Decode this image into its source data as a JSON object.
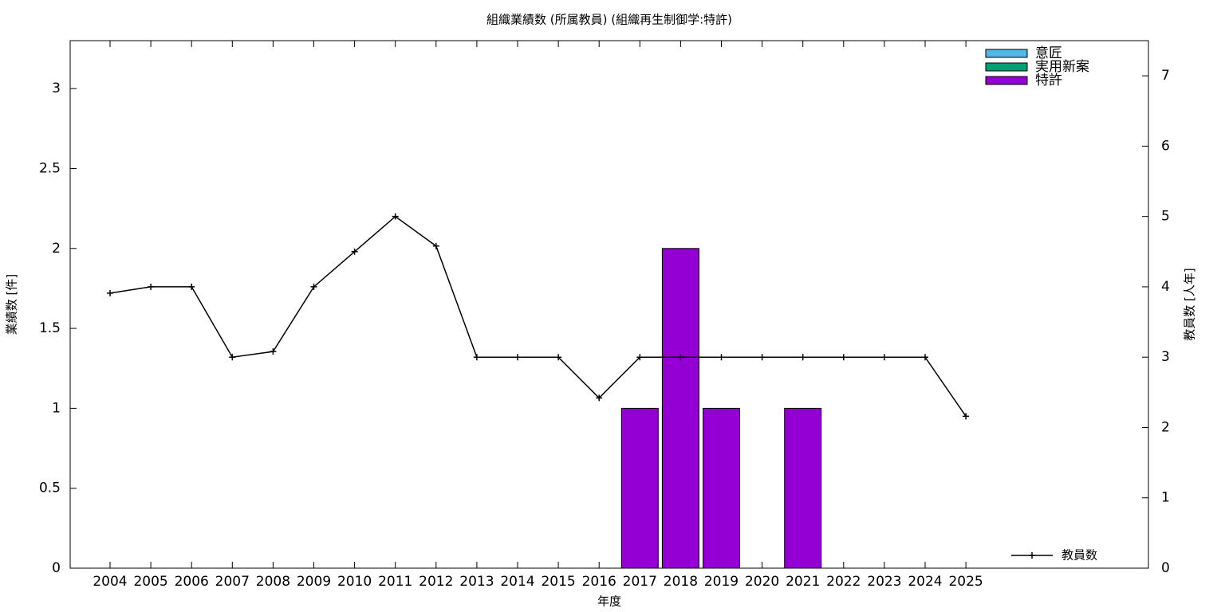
{
  "chart_data": {
    "type": "bar",
    "title": "組織業績数 (所属教員) (組織再生制御学:特許)",
    "x_label": "年度",
    "y_label": "業績数 [件]",
    "y2_label": "教員数 [人年]",
    "categories": [
      "2004",
      "2005",
      "2006",
      "2007",
      "2008",
      "2009",
      "2010",
      "2011",
      "2012",
      "2013",
      "2014",
      "2015",
      "2016",
      "2017",
      "2018",
      "2019",
      "2020",
      "2021",
      "2022",
      "2023",
      "2024",
      "2025"
    ],
    "series": [
      {
        "name": "意匠",
        "type": "bar",
        "color": "#56b4e9",
        "values": [
          0,
          0,
          0,
          0,
          0,
          0,
          0,
          0,
          0,
          0,
          0,
          0,
          0,
          0,
          0,
          0,
          0,
          0,
          0,
          0,
          0,
          0
        ]
      },
      {
        "name": "実用新案",
        "type": "bar",
        "color": "#009e73",
        "values": [
          0,
          0,
          0,
          0,
          0,
          0,
          0,
          0,
          0,
          0,
          0,
          0,
          0,
          0,
          0,
          0,
          0,
          0,
          0,
          0,
          0,
          0
        ]
      },
      {
        "name": "特許",
        "type": "bar",
        "color": "#9400d3",
        "values": [
          0,
          0,
          0,
          0,
          0,
          0,
          0,
          0,
          0,
          0,
          0,
          0,
          0,
          1,
          2,
          1,
          0,
          1,
          0,
          0,
          0,
          0
        ]
      },
      {
        "name": "教員数",
        "type": "line",
        "axis": "y2",
        "color": "#000000",
        "values": [
          3.91,
          4,
          4,
          3,
          3.08,
          4,
          4.5,
          5,
          4.58,
          3,
          3,
          3,
          2.42,
          3,
          3,
          3,
          3,
          3,
          3,
          3,
          3,
          2.16
        ]
      }
    ],
    "ylim": [
      0,
      3.3
    ],
    "yticks": [
      0,
      0.5,
      1,
      1.5,
      2,
      2.5,
      3
    ],
    "y2lim": [
      0,
      7.5
    ],
    "y2ticks": [
      0,
      1,
      2,
      3,
      4,
      5,
      6,
      7
    ],
    "legend": "top-right",
    "y2_legend": "bottom-right"
  }
}
